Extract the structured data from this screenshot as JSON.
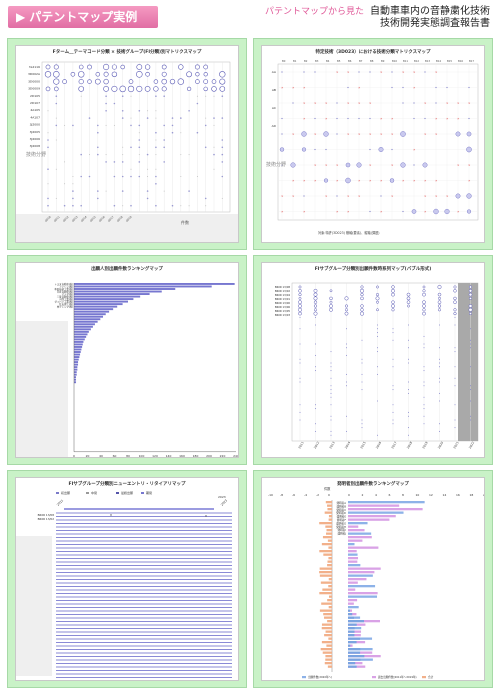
{
  "header": {
    "badge": "パテントマップ実例",
    "tagline": "パテントマップから見た",
    "title_line1": "自動車車内の音静粛化技術",
    "title_line2": "技術開発実態調査報告書"
  },
  "panels": {
    "p1": {
      "title": "Fターム__テーマコード分類 × 技術グループ(FI分類)別マトリクスマップ",
      "xlabel": "件数",
      "rowlabels": [
        "3L2116",
        "3D002A",
        "3D0000",
        "3D0009",
        "2D105",
        "2D107",
        "4A105",
        "4A107",
        "3J2000",
        "3J2005",
        "3J2006",
        "3J2008"
      ],
      "side": "技術分野",
      "colors": {
        "dot": "#7b7bc9"
      }
    },
    "p2": {
      "title": "特定技術（3D023）における技術分類マトリクスマップ",
      "footnote": "対象:特許(3D023)  横軸(要素)、縦軸(課題)",
      "rowlabels": [
        "AA",
        "AB",
        "AC",
        "AD"
      ],
      "side": "技術分野"
    },
    "p3": {
      "title": "出願人別出願件数ランキングマップ",
      "bars": [
        238,
        204,
        150,
        130,
        112,
        98,
        88,
        80,
        72,
        64,
        58,
        52,
        47,
        43,
        39,
        35,
        31,
        28,
        25,
        22,
        20,
        18,
        16,
        14,
        13,
        12,
        11,
        10,
        9,
        8,
        7,
        6,
        6,
        5,
        5,
        4,
        4,
        3,
        3,
        3
      ],
      "axis": [
        "0",
        "20",
        "40",
        "60",
        "80",
        "100",
        "120",
        "140",
        "160",
        "180",
        "200",
        "220",
        "240"
      ],
      "labels": [
        "トヨタ自動車(株)",
        "アイシン(株)",
        "本田技研工業(株)",
        "日産自動車(株)",
        "マツダ(株)",
        "三菱自動車(株)",
        "河西工業(株)",
        "ダイハツ工業(株)",
        "住友理工(株)",
        "林テレンプ(株)"
      ]
    },
    "p4": {
      "title": "FIサブグループ分類別出願件数時系列マップ(バブル形式)",
      "rowlabels": [
        "B60R 13/08",
        "B60R 13/02",
        "B60R 13/04",
        "B60R 13/01",
        "B60R 13/00",
        "B60R 13/06",
        "B60R 13/05",
        "B60R 13/03"
      ],
      "years": [
        "2011",
        "2012",
        "2013",
        "2014",
        "2015",
        "2016",
        "2017",
        "2018",
        "2019",
        "2020",
        "2021",
        "2022"
      ]
    },
    "p5": {
      "title": "FIサブグループ分類別ニューエントリ・リタイアリマップ",
      "legend": [
        "初出願",
        "中間",
        "最終出願",
        "期間"
      ],
      "rowlabels": [
        "B60R 13/08",
        "B60R 13/02"
      ],
      "years": [
        "2011",
        "2023"
      ],
      "year_top": "2023"
    },
    "p6": {
      "title": "発明者別出願件数ランキングマップ",
      "axis_left": [
        "-10",
        "-8",
        "-6",
        "-4",
        "-2",
        "0"
      ],
      "axis_right": [
        "0",
        "2",
        "4",
        "6",
        "8",
        "10",
        "12",
        "14",
        "16",
        "18",
        "20"
      ],
      "center_label": "件数",
      "legend": [
        "出願件数(2020年～)",
        "過去出願件数(2011年～2019年)",
        "合計"
      ],
      "names": [
        "発明者A",
        "発明者B",
        "発明者C",
        "発明者D",
        "発明者E",
        "発明者F",
        "発明者G",
        "発明者H",
        "発明者I",
        "発明者J"
      ]
    }
  }
}
